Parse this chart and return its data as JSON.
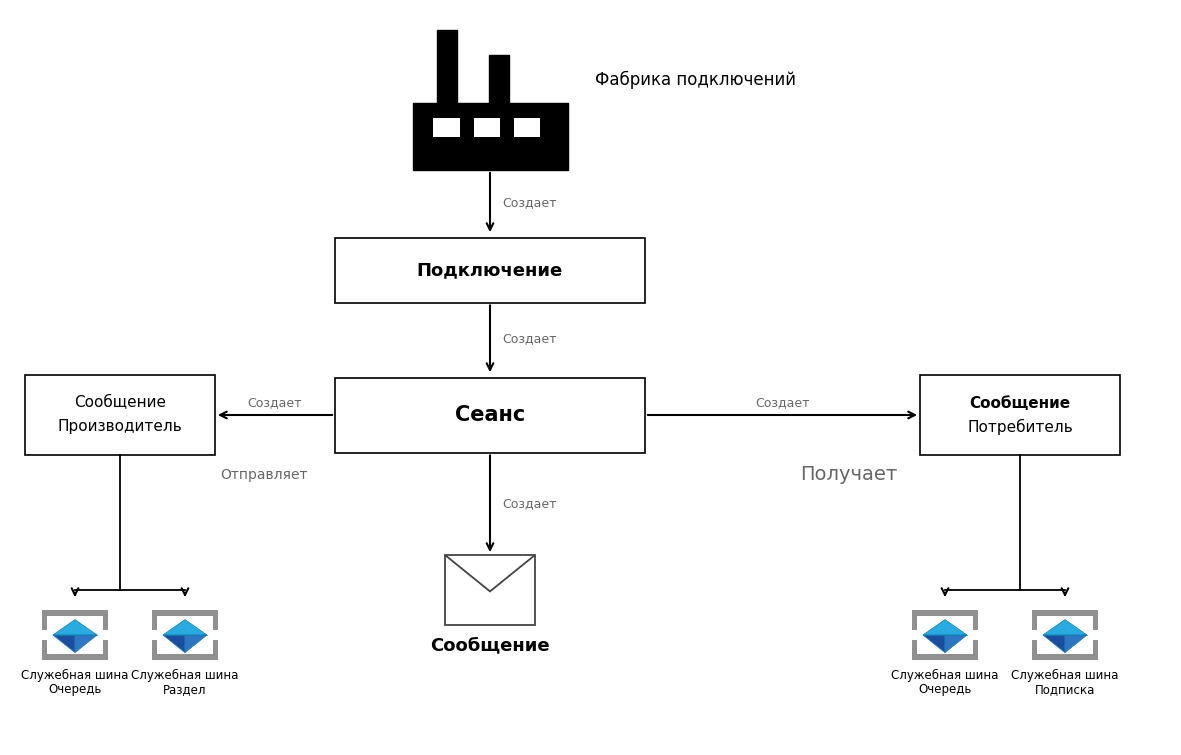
{
  "bg_color": "#ffffff",
  "factory_label": "Фабрика подключений",
  "connection_label": "Подключение",
  "session_label": "Сеанс",
  "creates_label": "Создает",
  "msg_producer_label1": "Сообщение",
  "msg_producer_label2": "Производитель",
  "msg_consumer_label1": "Сообщение",
  "msg_consumer_label2": "Потребитель",
  "message_label": "Сообщение",
  "sends_label": "Отправляет",
  "receives_label": "Получает",
  "queue1_label1": "Служебная шина",
  "queue1_label2": "Очередь",
  "topic1_label1": "Служебная шина",
  "topic1_label2": "Раздел",
  "queue2_label1": "Служебная шина",
  "queue2_label2": "Очередь",
  "topic2_label1": "Служебная шина",
  "topic2_label2": "Подписка"
}
